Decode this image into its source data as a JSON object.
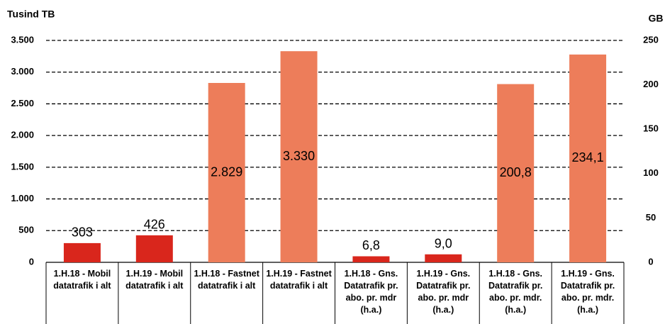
{
  "chart_data": {
    "type": "bar",
    "y_label": "Tusind TB",
    "y2_label": "GB",
    "categories": [
      "1.H.18 - Mobil datatrafik i alt",
      "1.H.19 - Mobil datatrafik i alt",
      "1.H.18 - Fastnet datatrafik i alt",
      "1.H.19 - Fastnet datatrafik i alt",
      "1.H.18 - Gns. Datatrafik pr. abo. pr. mdr (h.a.)",
      "1.H.19 - Gns. Datatrafik pr. abo. pr. mdr (h.a.)",
      "1.H.18 - Gns. Datatrafik pr. abo. pr. mdr. (h.a.)",
      "1.H.19 - Gns. Datatrafik pr. abo. pr. mdr. (h.a.)"
    ],
    "series": [
      {
        "colors": [
          "#d9261c",
          "#d9261c",
          "#ed7d5a",
          "#ed7d5a",
          null,
          null,
          null,
          null
        ],
        "values": [
          303,
          426,
          2829,
          3330,
          null,
          null,
          null,
          null
        ],
        "value_labels": [
          "303",
          "426",
          "2.829",
          "3.330",
          null,
          null,
          null,
          null
        ]
      },
      {
        "axis": "y2",
        "colors": [
          null,
          null,
          null,
          null,
          "#d9261c",
          "#d9261c",
          "#ed7d5a",
          "#ed7d5a"
        ],
        "values": [
          null,
          null,
          null,
          null,
          6.8,
          9.0,
          200.8,
          234.1
        ],
        "value_labels": [
          null,
          null,
          null,
          null,
          "6,8",
          "9,0",
          "200,8",
          "234,1"
        ]
      }
    ],
    "ylim": [
      0,
      3500
    ],
    "yticks": [
      0,
      500,
      {
        "value": 1000,
        "label": "1.000"
      },
      {
        "value": 1500,
        "label": "1.500"
      },
      {
        "value": 2000,
        "label": "2.000"
      },
      {
        "value": 2500,
        "label": "2.500"
      },
      {
        "value": 3000,
        "label": "3.000"
      },
      {
        "value": 3500,
        "label": "3.500"
      }
    ],
    "y2lim": [
      0,
      250
    ],
    "y2ticks": [
      0,
      50,
      100,
      150,
      200,
      250
    ],
    "grid": true
  }
}
